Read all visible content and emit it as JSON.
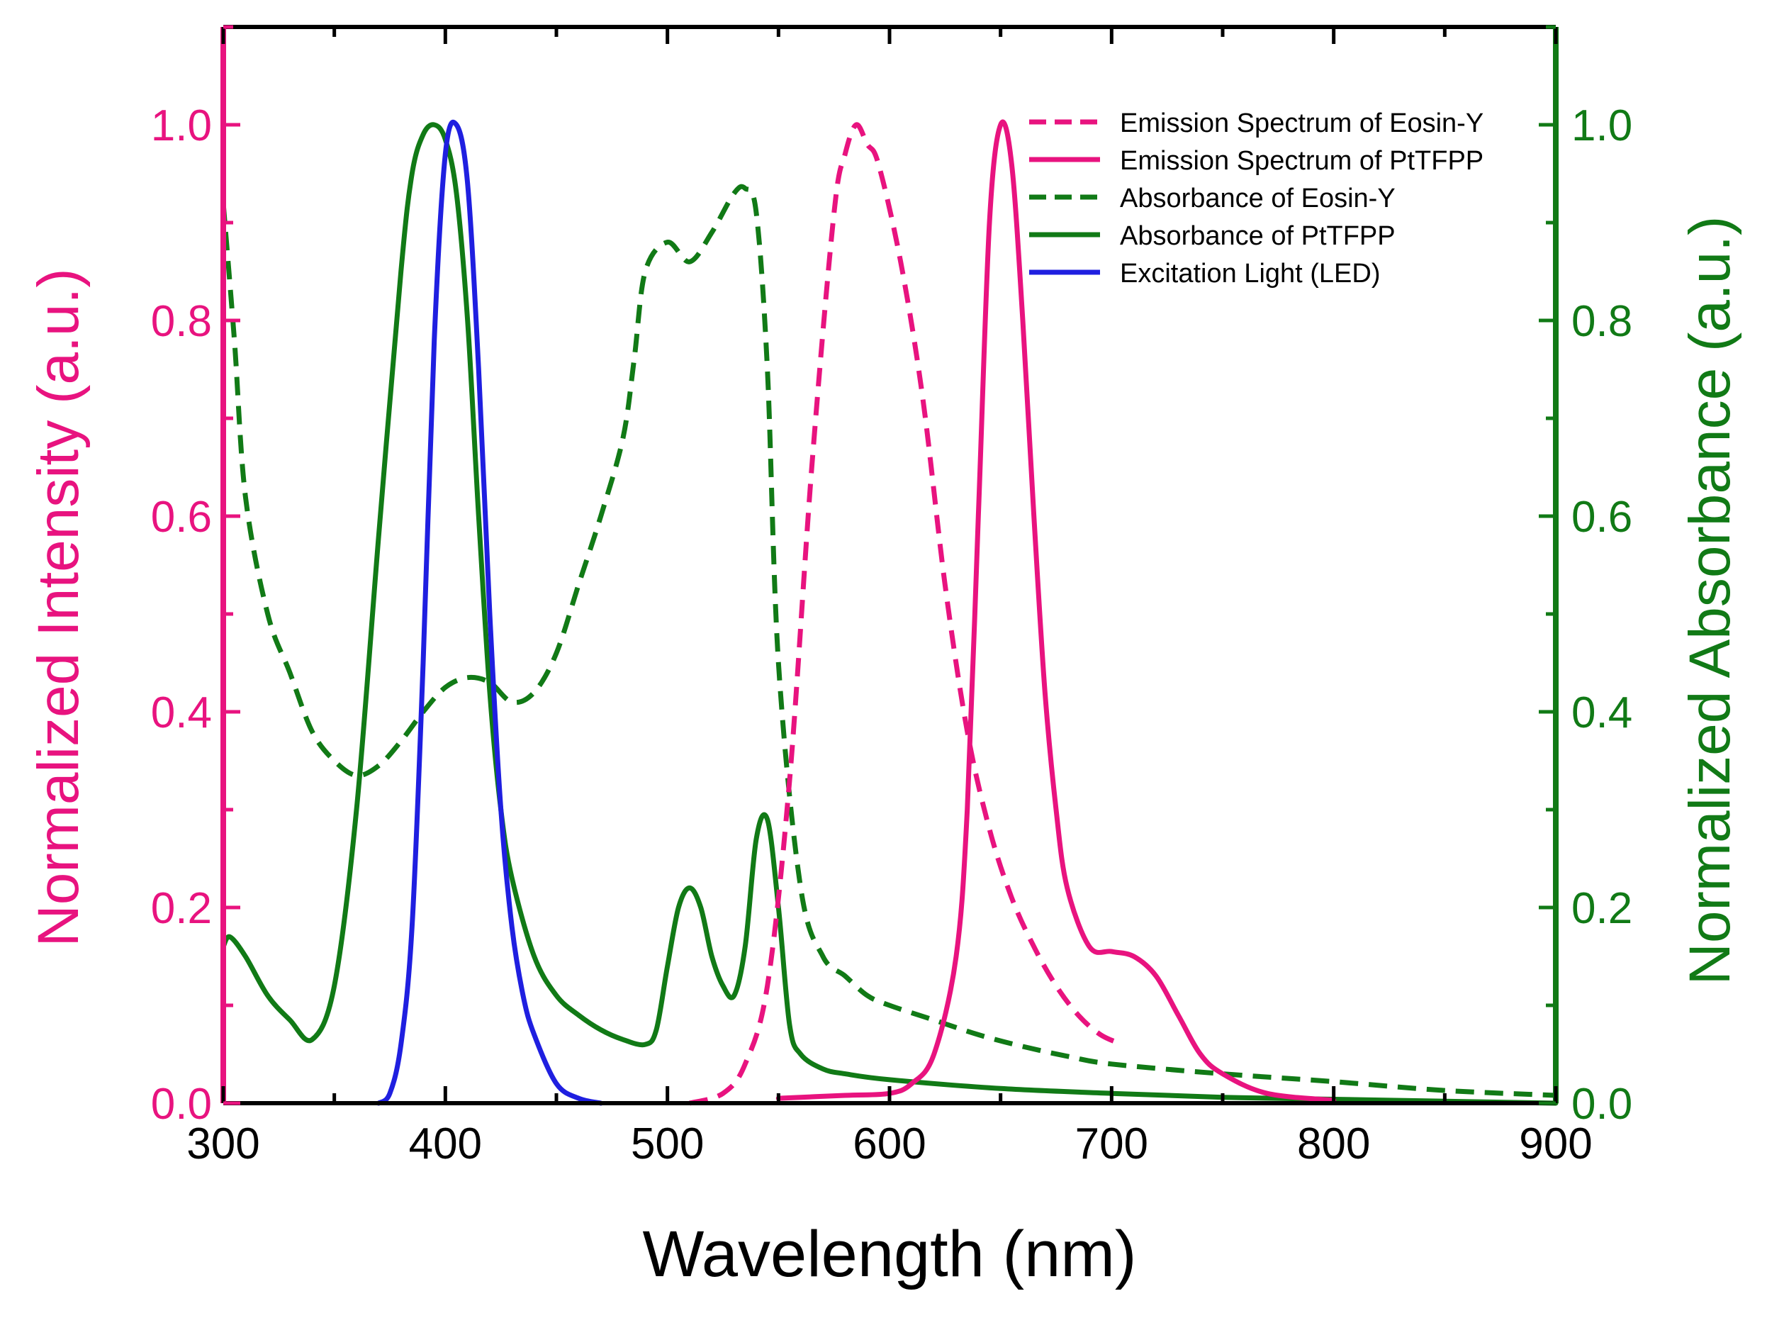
{
  "colors": {
    "pink": "#e8137f",
    "green": "#117a16",
    "blue": "#1f1fe0",
    "axis_black": "#000000"
  },
  "chart_data": {
    "type": "line",
    "title": "",
    "xlabel": "Wavelength (nm)",
    "ylabel_left": "Normalized Intensity (a.u.)",
    "ylabel_right": "Normalized Absorbance (a.u.)",
    "xlim": [
      300,
      900
    ],
    "ylim_left": [
      0,
      1.1
    ],
    "ylim_right": [
      0,
      1.1
    ],
    "x_ticks": [
      "300",
      "400",
      "500",
      "600",
      "700",
      "800",
      "900"
    ],
    "y_ticks_left": [
      "0.0",
      "0.2",
      "0.4",
      "0.6",
      "0.8",
      "1.0"
    ],
    "y_ticks_right": [
      "0.0",
      "0.2",
      "0.4",
      "0.6",
      "0.8",
      "1.0"
    ],
    "grid": false,
    "legend_position": "top-right",
    "series": [
      {
        "name": "Emission Spectrum of Eosin-Y",
        "axis": "left",
        "color": "#e8137f",
        "dash": true,
        "x": [
          510,
          525,
          535,
          545,
          555,
          565,
          575,
          580,
          585,
          590,
          595,
          605,
          615,
          625,
          635,
          645,
          655,
          665,
          675,
          685,
          695,
          705
        ],
        "y": [
          0.0,
          0.01,
          0.04,
          0.12,
          0.33,
          0.65,
          0.91,
          0.97,
          1.0,
          0.98,
          0.96,
          0.86,
          0.72,
          0.53,
          0.38,
          0.28,
          0.21,
          0.16,
          0.12,
          0.09,
          0.07,
          0.06
        ]
      },
      {
        "name": "Emission Spectrum of PtTFPP",
        "axis": "left",
        "color": "#e8137f",
        "dash": false,
        "x": [
          550,
          580,
          600,
          610,
          620,
          630,
          635,
          640,
          645,
          650,
          655,
          660,
          665,
          670,
          675,
          680,
          690,
          700,
          710,
          720,
          730,
          740,
          750,
          770,
          800
        ],
        "y": [
          0.005,
          0.008,
          0.01,
          0.02,
          0.05,
          0.15,
          0.3,
          0.6,
          0.9,
          1.0,
          0.96,
          0.8,
          0.6,
          0.42,
          0.3,
          0.22,
          0.16,
          0.155,
          0.15,
          0.13,
          0.09,
          0.05,
          0.03,
          0.01,
          0.003
        ]
      },
      {
        "name": "Absorbance of Eosin-Y",
        "axis": "right",
        "color": "#117a16",
        "dash": true,
        "x": [
          300,
          305,
          310,
          320,
          330,
          340,
          350,
          360,
          370,
          380,
          390,
          400,
          410,
          420,
          430,
          440,
          450,
          460,
          470,
          480,
          485,
          490,
          500,
          510,
          520,
          530,
          535,
          540,
          545,
          550,
          560,
          570,
          580,
          590,
          600,
          620,
          640,
          660,
          680,
          700,
          750,
          800,
          850,
          900
        ],
        "y": [
          0.92,
          0.78,
          0.62,
          0.5,
          0.44,
          0.38,
          0.35,
          0.335,
          0.345,
          0.37,
          0.4,
          0.425,
          0.435,
          0.43,
          0.41,
          0.42,
          0.46,
          0.53,
          0.6,
          0.68,
          0.76,
          0.85,
          0.88,
          0.86,
          0.89,
          0.93,
          0.935,
          0.91,
          0.75,
          0.45,
          0.22,
          0.15,
          0.13,
          0.11,
          0.1,
          0.085,
          0.07,
          0.058,
          0.048,
          0.04,
          0.03,
          0.022,
          0.013,
          0.008
        ]
      },
      {
        "name": "Absorbance of PtTFPP",
        "axis": "right",
        "color": "#117a16",
        "dash": false,
        "x": [
          300,
          303,
          310,
          320,
          330,
          340,
          350,
          360,
          370,
          380,
          385,
          390,
          395,
          400,
          405,
          410,
          415,
          420,
          425,
          430,
          440,
          450,
          460,
          470,
          480,
          490,
          495,
          500,
          505,
          510,
          515,
          520,
          525,
          530,
          535,
          540,
          545,
          550,
          555,
          560,
          570,
          580,
          600,
          650,
          700,
          750,
          800,
          850,
          900
        ],
        "y": [
          0.16,
          0.17,
          0.15,
          0.11,
          0.085,
          0.065,
          0.12,
          0.3,
          0.58,
          0.85,
          0.95,
          0.99,
          1.0,
          0.985,
          0.93,
          0.8,
          0.6,
          0.42,
          0.3,
          0.23,
          0.15,
          0.11,
          0.09,
          0.075,
          0.065,
          0.06,
          0.075,
          0.14,
          0.2,
          0.22,
          0.2,
          0.15,
          0.12,
          0.11,
          0.16,
          0.27,
          0.29,
          0.2,
          0.08,
          0.05,
          0.035,
          0.03,
          0.024,
          0.015,
          0.01,
          0.006,
          0.004,
          0.002,
          0.0
        ]
      },
      {
        "name": "Excitation Light (LED)",
        "axis": "left",
        "color": "#1f1fe0",
        "dash": false,
        "x": [
          370,
          375,
          380,
          385,
          390,
          395,
          400,
          405,
          410,
          415,
          420,
          425,
          430,
          435,
          440,
          450,
          460,
          470
        ],
        "y": [
          0.0,
          0.01,
          0.06,
          0.18,
          0.45,
          0.78,
          0.97,
          1.0,
          0.94,
          0.75,
          0.5,
          0.3,
          0.18,
          0.11,
          0.07,
          0.02,
          0.005,
          0.0
        ]
      }
    ]
  }
}
